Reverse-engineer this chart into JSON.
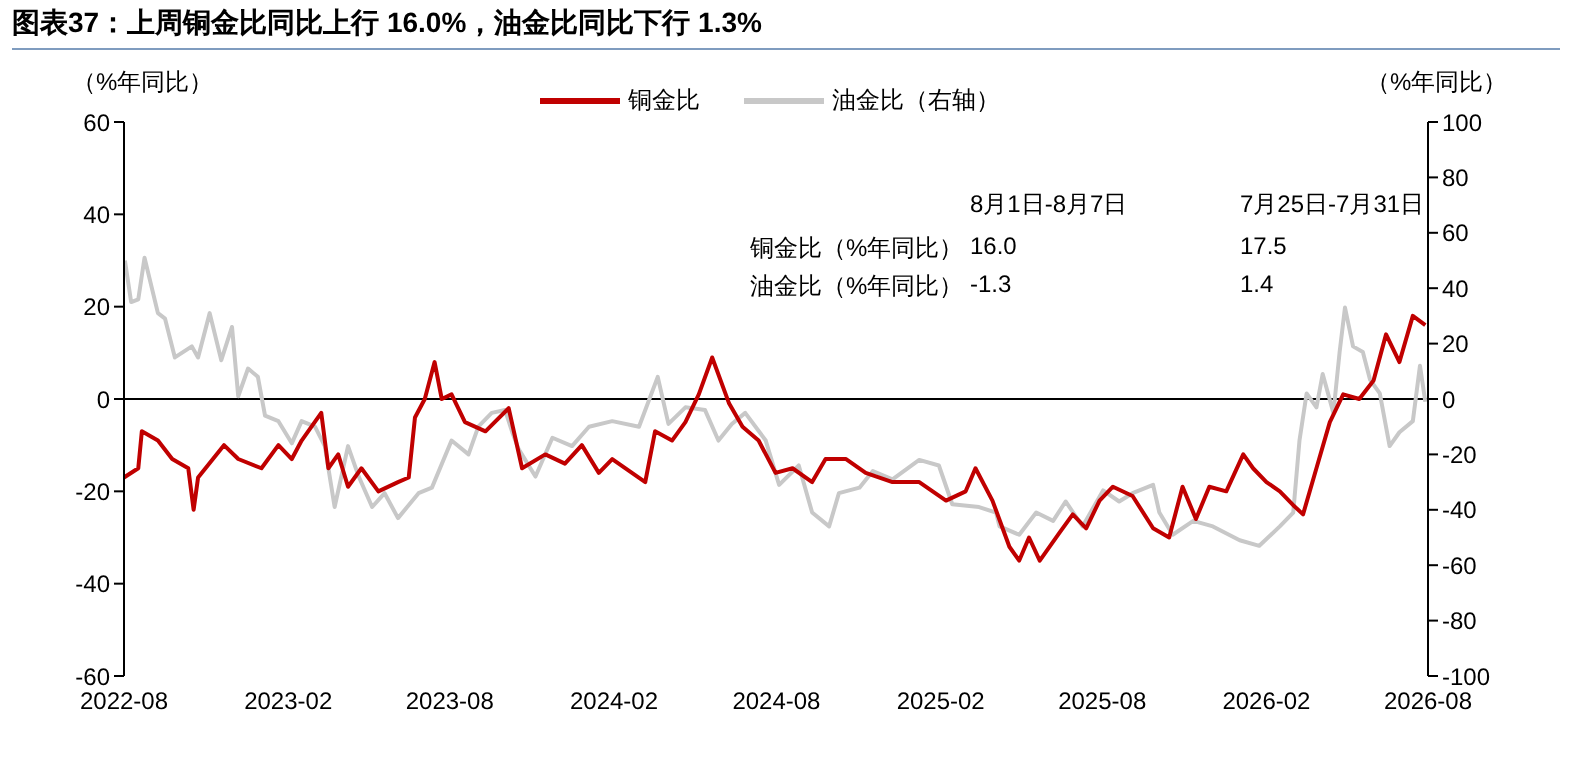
{
  "chart_data": {
    "type": "line",
    "title": "图表37：上周铜金比同比上行 16.0%，油金比同比下行 1.3%",
    "ylabel": "（%年同比）",
    "y2label": "（%年同比）",
    "annotations": [
      "8月1日-8月7日",
      "7月25日-7月31日",
      "铜金比（%年同比）",
      "16.0",
      "17.5",
      "油金比（%年同比）",
      "-1.3",
      "1.4"
    ],
    "xlim": [
      "2022-08",
      "2026-08"
    ],
    "xticks": [
      "2022-08",
      "2023-02",
      "2023-08",
      "2024-02",
      "2024-08",
      "2025-02",
      "2025-08",
      "2026-02",
      "2026-08"
    ],
    "ylim": [
      -60,
      60
    ],
    "yticks": [
      -60,
      -40,
      -20,
      0,
      20,
      40,
      60
    ],
    "y2lim": [
      -100,
      100
    ],
    "y2ticks": [
      -100,
      -80,
      -60,
      -40,
      -20,
      0,
      20,
      40,
      60,
      80,
      100
    ],
    "ref_lines": [
      {
        "axis": "y",
        "value": 0,
        "color": "#000000"
      }
    ],
    "legend": "top",
    "marker": "none",
    "line_style": "solid",
    "series": [
      {
        "name": "铜金比",
        "color": "#c00000",
        "x": [
          "2022-08-01",
          "2022-08-17",
          "2022-08-21",
          "2022-09-08",
          "2022-09-24",
          "2022-10-12",
          "2022-10-18",
          "2022-10-23",
          "2022-11-21",
          "2022-12-07",
          "2023-01-02",
          "2023-01-21",
          "2023-02-05",
          "2023-02-16",
          "2023-03-10",
          "2023-03-18",
          "2023-03-29",
          "2023-04-09",
          "2023-04-24",
          "2023-05-13",
          "2023-06-04",
          "2023-06-16",
          "2023-06-23",
          "2023-07-04",
          "2023-07-15",
          "2023-07-23",
          "2023-08-03",
          "2023-08-18",
          "2023-09-10",
          "2023-10-06",
          "2023-10-21",
          "2023-11-16",
          "2023-12-08",
          "2023-12-27",
          "2024-01-15",
          "2024-01-30",
          "2024-03-07",
          "2024-03-18",
          "2024-04-06",
          "2024-04-21",
          "2024-05-06",
          "2024-05-21",
          "2024-06-09",
          "2024-06-24",
          "2024-07-12",
          "2024-07-31",
          "2024-08-19",
          "2024-09-10",
          "2024-09-25",
          "2024-10-18",
          "2024-11-09",
          "2024-12-09",
          "2025-01-08",
          "2025-02-07",
          "2025-03-01",
          "2025-03-12",
          "2025-03-31",
          "2025-04-19",
          "2025-04-30",
          "2025-05-11",
          "2025-05-23",
          "2025-06-14",
          "2025-06-29",
          "2025-07-14",
          "2025-07-29",
          "2025-08-13",
          "2025-09-04",
          "2025-09-27",
          "2025-10-15",
          "2025-10-30",
          "2025-11-14",
          "2025-11-29",
          "2025-12-18",
          "2026-01-06",
          "2026-01-17",
          "2026-02-01",
          "2026-02-16",
          "2026-03-03",
          "2026-03-14",
          "2026-03-29",
          "2026-04-13",
          "2026-04-28",
          "2026-05-16",
          "2026-06-01",
          "2026-06-15",
          "2026-06-30",
          "2026-07-15",
          "2026-07-29"
        ],
        "values": [
          -17,
          -15,
          -7,
          -9,
          -13,
          -15,
          -24,
          -17,
          -10,
          -13,
          -15,
          -10,
          -13,
          -9,
          -3,
          -15,
          -12,
          -19,
          -15,
          -20,
          -18,
          -17,
          -4,
          0,
          8,
          0,
          1,
          -5,
          -7,
          -2,
          -15,
          -12,
          -14,
          -10,
          -16,
          -13,
          -18,
          -7,
          -9,
          -5,
          1,
          9,
          -1,
          -6,
          -9,
          -16,
          -15,
          -18,
          -13,
          -13,
          -16,
          -18,
          -18,
          -22,
          -20,
          -15,
          -22,
          -32,
          -35,
          -30,
          -35,
          -29,
          -25,
          -28,
          -22,
          -19,
          -21,
          -28,
          -30,
          -19,
          -26,
          -19,
          -20,
          -12,
          -15,
          -18,
          -20,
          -23,
          -25,
          -15,
          -5,
          1,
          0,
          4,
          14,
          8,
          18,
          16
        ]
      },
      {
        "name": "油金比（右轴）",
        "color": "#c8c8c8",
        "axis": "y2",
        "x": [
          "2022-08-02",
          "2022-08-09",
          "2022-08-17",
          "2022-08-24",
          "2022-09-08",
          "2022-09-16",
          "2022-09-27",
          "2022-10-16",
          "2022-10-23",
          "2022-11-05",
          "2022-11-18",
          "2022-11-30",
          "2022-12-07",
          "2022-12-18",
          "2022-12-29",
          "2023-01-06",
          "2023-01-21",
          "2023-02-05",
          "2023-02-16",
          "2023-03-03",
          "2023-03-14",
          "2023-03-25",
          "2023-04-09",
          "2023-04-21",
          "2023-05-06",
          "2023-05-20",
          "2023-06-04",
          "2023-06-27",
          "2023-07-12",
          "2023-08-03",
          "2023-08-22",
          "2023-09-02",
          "2023-09-17",
          "2023-10-02",
          "2023-10-10",
          "2023-10-17",
          "2023-11-05",
          "2023-11-24",
          "2023-12-16",
          "2024-01-04",
          "2024-01-30",
          "2024-02-29",
          "2024-03-21",
          "2024-04-02",
          "2024-04-21",
          "2024-05-13",
          "2024-05-28",
          "2024-06-12",
          "2024-06-27",
          "2024-07-20",
          "2024-08-04",
          "2024-08-26",
          "2024-09-10",
          "2024-09-29",
          "2024-10-10",
          "2024-11-02",
          "2024-11-17",
          "2024-12-09",
          "2025-01-08",
          "2025-01-30",
          "2025-02-14",
          "2025-03-16",
          "2025-04-04",
          "2025-04-08",
          "2025-04-30",
          "2025-05-19",
          "2025-06-07",
          "2025-06-21",
          "2025-07-10",
          "2025-08-02",
          "2025-08-20",
          "2025-09-04",
          "2025-09-27",
          "2025-10-04",
          "2025-10-19",
          "2025-11-11",
          "2025-12-03",
          "2026-01-02",
          "2026-01-24",
          "2026-02-16",
          "2026-03-03",
          "2026-03-10",
          "2026-03-18",
          "2026-03-29",
          "2026-04-05",
          "2026-04-17",
          "2026-04-24",
          "2026-04-30",
          "2026-05-09",
          "2026-05-20",
          "2026-05-28",
          "2026-06-08",
          "2026-06-19",
          "2026-06-30",
          "2026-07-15",
          "2026-07-23",
          "2026-07-29"
        ],
        "values": [
          50,
          35,
          36,
          51,
          31,
          29,
          15,
          19,
          15,
          31,
          14,
          26,
          1,
          11,
          8,
          -6,
          -8,
          -16,
          -8,
          -10,
          -17,
          -39,
          -17,
          -28,
          -39,
          -34,
          -43,
          -34,
          -32,
          -15,
          -20,
          -10,
          -5,
          -4,
          -12,
          -18,
          -28,
          -14,
          -17,
          -10,
          -8,
          -10,
          8,
          -9,
          -3,
          -4,
          -15,
          -9,
          -5,
          -15,
          -31,
          -24,
          -41,
          -46,
          -34,
          -32,
          -26,
          -29,
          -22,
          -24,
          -38,
          -39,
          -41,
          -46,
          -49,
          -41,
          -44,
          -37,
          -46,
          -33,
          -37,
          -34,
          -31,
          -41,
          -49,
          -44,
          -46,
          -51,
          -53,
          -46,
          -41,
          -15,
          2,
          -3,
          9,
          -5,
          17,
          33,
          19,
          17,
          7,
          2,
          -17,
          -12,
          -8,
          12,
          -1
        ]
      }
    ]
  }
}
